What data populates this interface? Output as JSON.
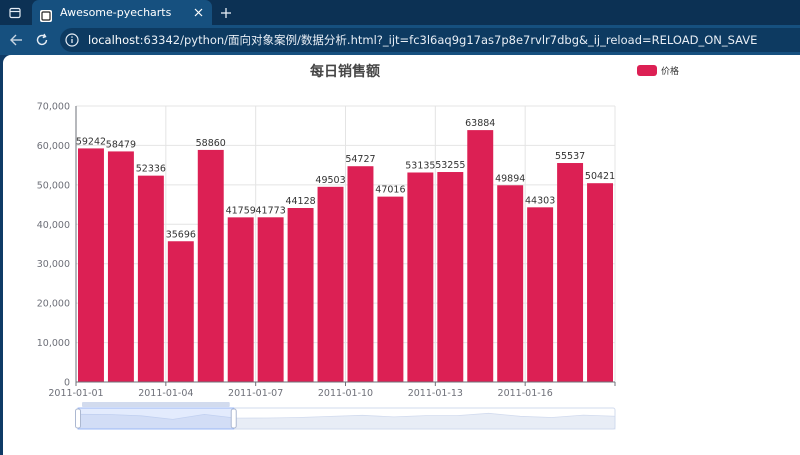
{
  "browser": {
    "tab_title": "Awesome-pyecharts",
    "url_host": "localhost",
    "url_rest": ":63342/python/面向对象案例/数据分析.html?_ijt=fc3l6aq9g17as7p8e7rvlr7dbg&_ij_reload=RELOAD_ON_SAVE",
    "tab_icon": "pyecharts-favicon",
    "window_icon": "window-icon",
    "close_icon": "close-icon",
    "new_tab_icon": "plus-icon",
    "back_icon": "back-arrow-icon",
    "reload_icon": "reload-icon",
    "site_info_icon": "site-info-icon"
  },
  "chart_data": {
    "type": "bar",
    "title": "每日销售额",
    "series": [
      {
        "name": "价格",
        "color": "#dc2054",
        "values": [
          59242,
          58479,
          52336,
          35696,
          58860,
          41759,
          41773,
          44128,
          49503,
          54727,
          47016,
          53135,
          53255,
          63884,
          49894,
          44303,
          55537,
          50421
        ]
      }
    ],
    "categories": [
      "2011-01-01",
      "2011-01-02",
      "2011-01-03",
      "2011-01-04",
      "2011-01-05",
      "2011-01-06",
      "2011-01-07",
      "2011-01-08",
      "2011-01-09",
      "2011-01-10",
      "2011-01-11",
      "2011-01-12",
      "2011-01-13",
      "2011-01-14",
      "2011-01-15",
      "2011-01-16",
      "2011-01-17",
      "2011-01-18"
    ],
    "x_tick_labels": [
      "2011-01-01",
      "2011-01-04",
      "2011-01-07",
      "2011-01-10",
      "2011-01-13",
      "2011-01-16"
    ],
    "y_tick_labels": [
      "0",
      "10,000",
      "20,000",
      "30,000",
      "40,000",
      "50,000",
      "60,000",
      "70,000"
    ],
    "ylim": [
      0,
      70000
    ],
    "y_step": 10000,
    "grid": true,
    "legend_position": "top-right",
    "data_labels": true,
    "datazoom": {
      "range_start_fraction": 0.0,
      "range_end_fraction": 0.29
    }
  }
}
